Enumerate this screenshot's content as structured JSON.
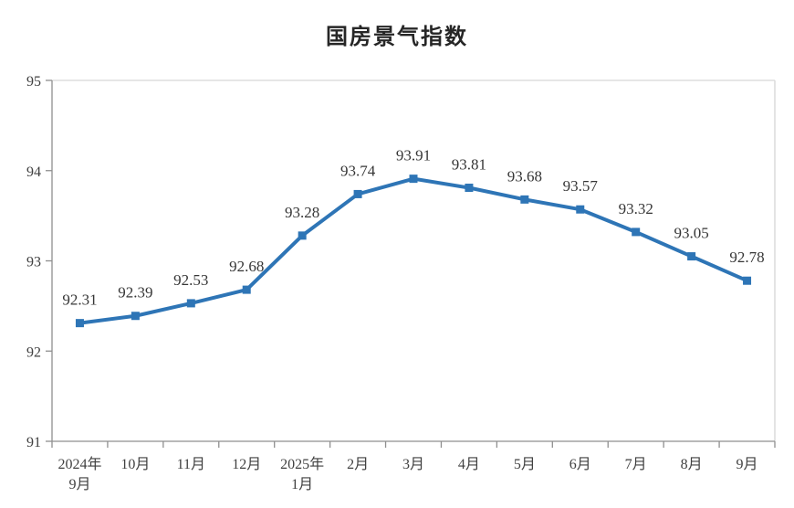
{
  "chart_data": {
    "type": "line",
    "title": "国房景气指数",
    "categories": [
      "2024年\n9月",
      "10月",
      "11月",
      "12月",
      "2025年\n1月",
      "2月",
      "3月",
      "4月",
      "5月",
      "6月",
      "7月",
      "8月",
      "9月"
    ],
    "series": [
      {
        "name": "国房景气指数",
        "values": [
          92.31,
          92.39,
          92.53,
          92.68,
          93.28,
          93.74,
          93.91,
          93.81,
          93.68,
          93.57,
          93.32,
          93.05,
          92.78
        ],
        "data_labels": [
          "92.31",
          "92.39",
          "92.53",
          "92.68",
          "93.28",
          "93.74",
          "93.91",
          "93.81",
          "93.68",
          "93.57",
          "93.32",
          "93.05",
          "92.78"
        ]
      }
    ],
    "xlabel": "",
    "ylabel": "",
    "ylim": [
      91,
      95
    ],
    "yticks": [
      "95",
      "94",
      "93",
      "92",
      "91"
    ],
    "ytick_values": [
      95,
      94,
      93,
      92,
      91
    ],
    "grid": false,
    "legend_position": "none",
    "marker": "square",
    "data_label_position": "above",
    "colors": {
      "line": "#2E75B6",
      "marker": "#2E75B6",
      "label_text": "#363636",
      "axis_text": "#404040",
      "axis_line": "#8F8F8F",
      "border_light": "#D6D6D6",
      "background": "#FFFFFF"
    }
  }
}
